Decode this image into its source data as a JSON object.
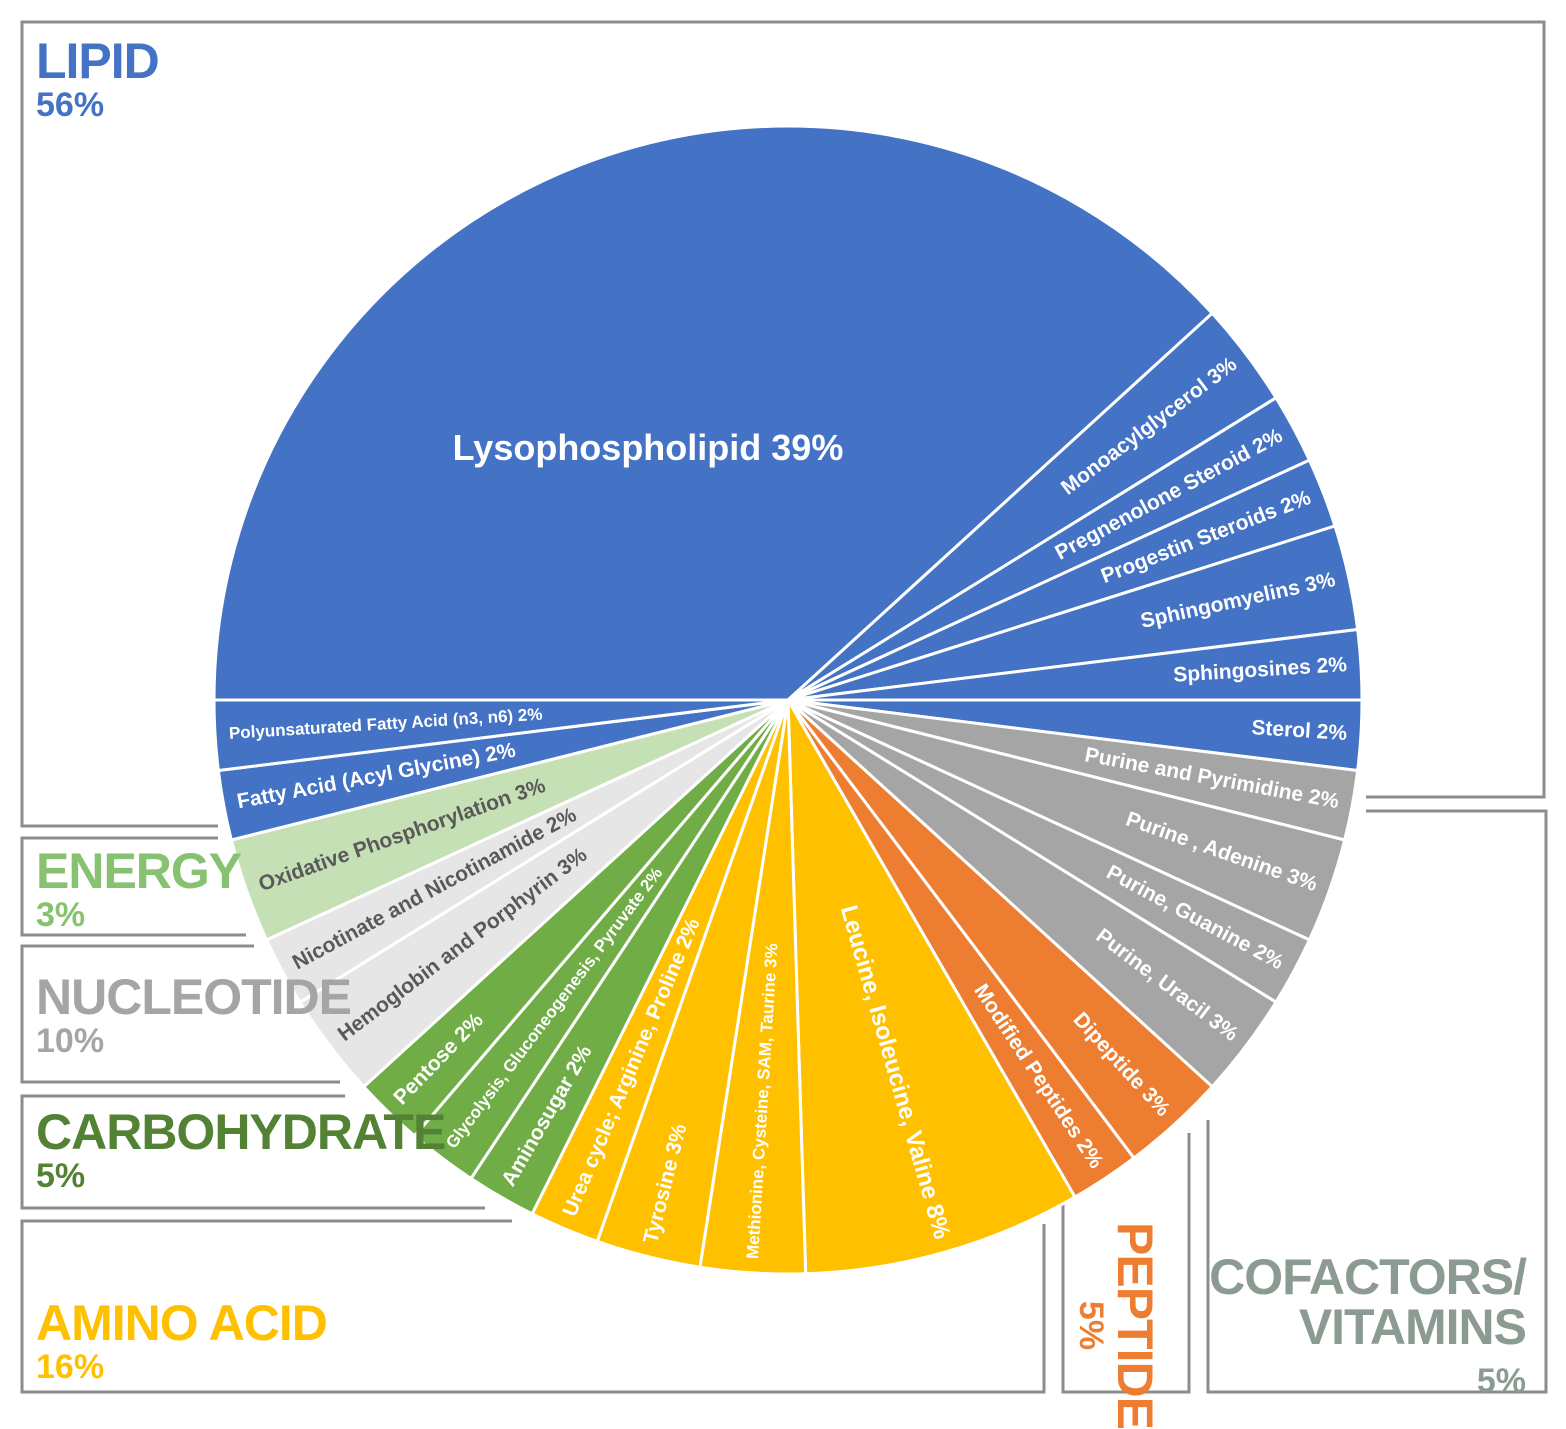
{
  "chart_data": {
    "type": "pie",
    "title": "",
    "slices": [
      {
        "label": "Lysophospholipid  39%",
        "value": 39,
        "group": "LIPID",
        "color": "#4472c4",
        "text_color": "#ffffff"
      },
      {
        "label": "Monoacylglycerol 3%",
        "value": 3,
        "group": "LIPID",
        "color": "#4472c4",
        "text_color": "#ffffff"
      },
      {
        "label": "Pregnenolone Steroid 2%",
        "value": 2,
        "group": "LIPID",
        "color": "#4472c4",
        "text_color": "#ffffff"
      },
      {
        "label": "Progestin Steroids 2%",
        "value": 2,
        "group": "LIPID",
        "color": "#4472c4",
        "text_color": "#ffffff"
      },
      {
        "label": "Sphingomyelins 3%",
        "value": 3,
        "group": "LIPID",
        "color": "#4472c4",
        "text_color": "#ffffff"
      },
      {
        "label": "Sphingosines 2%",
        "value": 2,
        "group": "LIPID",
        "color": "#4472c4",
        "text_color": "#ffffff"
      },
      {
        "label": "Sterol 2%",
        "value": 2,
        "group": "LIPID",
        "color": "#4472c4",
        "text_color": "#ffffff"
      },
      {
        "label": "Purine and Pyrimidine 2%",
        "value": 2,
        "group": "NUCLEOTIDE",
        "color": "#a5a5a5",
        "text_color": "#ffffff"
      },
      {
        "label": "Purine , Adenine 3%",
        "value": 3,
        "group": "NUCLEOTIDE",
        "color": "#a5a5a5",
        "text_color": "#ffffff"
      },
      {
        "label": "Purine, Guanine 2%",
        "value": 2,
        "group": "NUCLEOTIDE",
        "color": "#a5a5a5",
        "text_color": "#ffffff"
      },
      {
        "label": "Purine, Uracil 3%",
        "value": 3,
        "group": "NUCLEOTIDE",
        "color": "#a5a5a5",
        "text_color": "#ffffff"
      },
      {
        "label": "Dipeptide 3%",
        "value": 3,
        "group": "PEPTIDE",
        "color": "#ed7d31",
        "text_color": "#ffffff"
      },
      {
        "label": "Modified Peptides 2%",
        "value": 2,
        "group": "PEPTIDE",
        "color": "#ed7d31",
        "text_color": "#ffffff"
      },
      {
        "label": "Leucine, Isoleucine, Valine 8%",
        "value": 8,
        "group": "AMINO ACID",
        "color": "#ffc000",
        "text_color": "#ffffff"
      },
      {
        "label": "Methionine, Cysteine, SAM, Taurine 3%",
        "value": 3,
        "group": "AMINO ACID",
        "color": "#ffc000",
        "text_color": "#ffffff"
      },
      {
        "label": "Tyrosine  3%",
        "value": 3,
        "group": "AMINO ACID",
        "color": "#ffc000",
        "text_color": "#ffffff"
      },
      {
        "label": "Urea cycle; Arginine, Proline 2%",
        "value": 2,
        "group": "AMINO ACID",
        "color": "#ffc000",
        "text_color": "#ffffff"
      },
      {
        "label": "Aminosugar 2%",
        "value": 2,
        "group": "CARBOHYDRATE",
        "color": "#70ad47",
        "text_color": "#ffffff"
      },
      {
        "label": "Glycolysis, Gluconeogenesis, Pyruvate 2%",
        "value": 2,
        "group": "CARBOHYDRATE",
        "color": "#70ad47",
        "text_color": "#ffffff"
      },
      {
        "label": "Pentose 2%",
        "value": 2,
        "group": "CARBOHYDRATE",
        "color": "#70ad47",
        "text_color": "#ffffff"
      },
      {
        "label": "Hemoglobin and Porphyrin 3%",
        "value": 3,
        "group": "COFACTORS/VITAMINS",
        "color": "#e7e6e6",
        "text_color": "#595959"
      },
      {
        "label": "Nicotinate and Nicotinamide 2%",
        "value": 2,
        "group": "COFACTORS/VITAMINS",
        "color": "#e7e6e6",
        "text_color": "#595959"
      },
      {
        "label": "Oxidative Phosphorylation 3%",
        "value": 3,
        "group": "ENERGY",
        "color": "#c5e0b4",
        "text_color": "#595959"
      },
      {
        "label": "Fatty Acid (Acyl Glycine) 2%",
        "value": 2,
        "group": "LIPID",
        "color": "#4472c4",
        "text_color": "#ffffff"
      },
      {
        "label": "Polyunsaturated Fatty Acid (n3, n6) 2%",
        "value": 2,
        "group": "LIPID",
        "color": "#4472c4",
        "text_color": "#ffffff"
      }
    ],
    "groups": [
      {
        "name": "LIPID",
        "pct": "56%",
        "color": "#4472c4"
      },
      {
        "name": "ENERGY",
        "pct": "3%",
        "color": "#86c26f"
      },
      {
        "name": "NUCLEOTIDE",
        "pct": "10%",
        "color": "#a5a5a5"
      },
      {
        "name": "CARBOHYDRATE",
        "pct": "5%",
        "color": "#548235"
      },
      {
        "name": "AMINO ACID",
        "pct": "16%",
        "color": "#ffc000"
      },
      {
        "name": "PEPTIDE",
        "pct": "5%",
        "color": "#ed7d31"
      },
      {
        "name_line1": "COFACTORS/",
        "name_line2": "VITAMINS",
        "pct": "5%",
        "color": "#8c9b91"
      }
    ],
    "start_angle_deg": 180,
    "direction": "clockwise"
  }
}
